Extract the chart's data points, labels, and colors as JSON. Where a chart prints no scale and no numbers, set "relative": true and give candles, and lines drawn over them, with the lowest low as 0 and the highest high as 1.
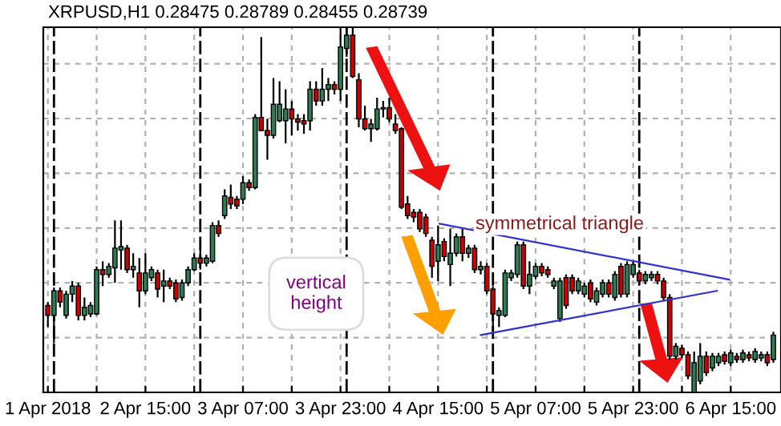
{
  "chart_data": {
    "type": "candlestick",
    "relative": true,
    "title": "XRPUSD,H1 0.28475 0.28789 0.28455 0.28739",
    "x": [
      "2018-04-01T23:00",
      "2018-04-02T00:00",
      "2018-04-02T01:00",
      "2018-04-02T02:00",
      "2018-04-02T03:00",
      "2018-04-02T04:00",
      "2018-04-02T05:00",
      "2018-04-02T06:00",
      "2018-04-02T07:00",
      "2018-04-02T08:00",
      "2018-04-02T09:00",
      "2018-04-02T10:00",
      "2018-04-02T11:00",
      "2018-04-02T12:00",
      "2018-04-02T13:00",
      "2018-04-02T14:00",
      "2018-04-02T15:00",
      "2018-04-02T16:00",
      "2018-04-02T17:00",
      "2018-04-02T18:00",
      "2018-04-02T19:00",
      "2018-04-02T20:00",
      "2018-04-02T21:00",
      "2018-04-02T22:00",
      "2018-04-02T23:00",
      "2018-04-03T00:00",
      "2018-04-03T01:00",
      "2018-04-03T02:00",
      "2018-04-03T03:00",
      "2018-04-03T04:00",
      "2018-04-03T05:00",
      "2018-04-03T06:00",
      "2018-04-03T07:00",
      "2018-04-03T08:00",
      "2018-04-03T09:00",
      "2018-04-03T10:00",
      "2018-04-03T11:00",
      "2018-04-03T12:00",
      "2018-04-03T13:00",
      "2018-04-03T14:00",
      "2018-04-03T15:00",
      "2018-04-03T16:00",
      "2018-04-03T17:00",
      "2018-04-03T18:00",
      "2018-04-03T19:00",
      "2018-04-03T20:00",
      "2018-04-03T21:00",
      "2018-04-03T22:00",
      "2018-04-03T23:00",
      "2018-04-04T00:00",
      "2018-04-04T01:00",
      "2018-04-04T02:00",
      "2018-04-04T03:00",
      "2018-04-04T04:00",
      "2018-04-04T05:00",
      "2018-04-04T06:00",
      "2018-04-04T07:00",
      "2018-04-04T08:00",
      "2018-04-04T09:00",
      "2018-04-04T10:00",
      "2018-04-04T11:00",
      "2018-04-04T12:00",
      "2018-04-04T13:00",
      "2018-04-04T14:00",
      "2018-04-04T15:00",
      "2018-04-04T16:00",
      "2018-04-04T17:00",
      "2018-04-04T18:00",
      "2018-04-04T19:00",
      "2018-04-04T20:00",
      "2018-04-04T21:00",
      "2018-04-04T22:00",
      "2018-04-04T23:00",
      "2018-04-05T00:00",
      "2018-04-05T01:00",
      "2018-04-05T02:00",
      "2018-04-05T03:00",
      "2018-04-05T04:00",
      "2018-04-05T05:00",
      "2018-04-05T06:00",
      "2018-04-05T07:00",
      "2018-04-05T08:00",
      "2018-04-05T09:00",
      "2018-04-05T10:00",
      "2018-04-05T11:00",
      "2018-04-05T12:00",
      "2018-04-05T13:00",
      "2018-04-05T14:00",
      "2018-04-05T15:00",
      "2018-04-05T16:00",
      "2018-04-05T17:00",
      "2018-04-05T18:00",
      "2018-04-05T19:00",
      "2018-04-05T20:00",
      "2018-04-05T21:00",
      "2018-04-05T22:00",
      "2018-04-05T23:00",
      "2018-04-06T00:00",
      "2018-04-06T01:00",
      "2018-04-06T02:00",
      "2018-04-06T03:00",
      "2018-04-06T04:00",
      "2018-04-06T05:00",
      "2018-04-06T06:00",
      "2018-04-06T07:00",
      "2018-04-06T08:00",
      "2018-04-06T09:00",
      "2018-04-06T10:00",
      "2018-04-06T11:00",
      "2018-04-06T12:00",
      "2018-04-06T13:00",
      "2018-04-06T14:00",
      "2018-04-06T15:00",
      "2018-04-06T16:00",
      "2018-04-06T17:00",
      "2018-04-06T18:00",
      "2018-04-06T19:00",
      "2018-04-06T20:00",
      "2018-04-06T21:00",
      "2018-04-06T22:00"
    ],
    "ohlc": [
      [
        0.238,
        0.247,
        0.179,
        0.211
      ],
      [
        0.211,
        0.287,
        0.135,
        0.278
      ],
      [
        0.278,
        0.287,
        0.233,
        0.247
      ],
      [
        0.211,
        0.278,
        0.202,
        0.269
      ],
      [
        0.269,
        0.305,
        0.247,
        0.291
      ],
      [
        0.291,
        0.3,
        0.197,
        0.211
      ],
      [
        0.211,
        0.26,
        0.197,
        0.233
      ],
      [
        0.215,
        0.247,
        0.206,
        0.238
      ],
      [
        0.215,
        0.345,
        0.211,
        0.336
      ],
      [
        0.336,
        0.359,
        0.291,
        0.323
      ],
      [
        0.323,
        0.354,
        0.314,
        0.345
      ],
      [
        0.341,
        0.471,
        0.3,
        0.395
      ],
      [
        0.39,
        0.471,
        0.336,
        0.399
      ],
      [
        0.395,
        0.404,
        0.327,
        0.336
      ],
      [
        0.336,
        0.381,
        0.314,
        0.345
      ],
      [
        0.327,
        0.368,
        0.233,
        0.278
      ],
      [
        0.278,
        0.381,
        0.269,
        0.327
      ],
      [
        0.314,
        0.345,
        0.305,
        0.336
      ],
      [
        0.327,
        0.336,
        0.26,
        0.283
      ],
      [
        0.291,
        0.336,
        0.247,
        0.305
      ],
      [
        0.305,
        0.314,
        0.283,
        0.291
      ],
      [
        0.3,
        0.309,
        0.247,
        0.256
      ],
      [
        0.26,
        0.309,
        0.251,
        0.3
      ],
      [
        0.3,
        0.345,
        0.291,
        0.336
      ],
      [
        0.336,
        0.381,
        0.332,
        0.368
      ],
      [
        0.368,
        0.395,
        0.336,
        0.354
      ],
      [
        0.354,
        0.377,
        0.345,
        0.368
      ],
      [
        0.359,
        0.466,
        0.354,
        0.457
      ],
      [
        0.457,
        0.471,
        0.426,
        0.435
      ],
      [
        0.484,
        0.556,
        0.475,
        0.538
      ],
      [
        0.534,
        0.569,
        0.502,
        0.516
      ],
      [
        0.529,
        0.538,
        0.502,
        0.511
      ],
      [
        0.529,
        0.592,
        0.516,
        0.574
      ],
      [
        0.574,
        0.583,
        0.552,
        0.561
      ],
      [
        0.561,
        0.762,
        0.556,
        0.753
      ],
      [
        0.753,
        0.973,
        0.717,
        0.717
      ],
      [
        0.717,
        0.749,
        0.637,
        0.704
      ],
      [
        0.704,
        0.861,
        0.695,
        0.789
      ],
      [
        0.744,
        0.852,
        0.74,
        0.789
      ],
      [
        0.744,
        0.83,
        0.682,
        0.776
      ],
      [
        0.776,
        0.798,
        0.704,
        0.749
      ],
      [
        0.749,
        0.762,
        0.717,
        0.74
      ],
      [
        0.744,
        0.762,
        0.708,
        0.735
      ],
      [
        0.744,
        0.852,
        0.717,
        0.83
      ],
      [
        0.83,
        0.852,
        0.785,
        0.798
      ],
      [
        0.798,
        0.888,
        0.785,
        0.83
      ],
      [
        0.83,
        0.861,
        0.798,
        0.843
      ],
      [
        0.843,
        0.852,
        0.816,
        0.83
      ],
      [
        0.83,
        1.0,
        0.798,
        0.946
      ],
      [
        0.942,
        1.0,
        0.919,
        0.978
      ],
      [
        0.978,
        1.0,
        0.861,
        0.865
      ],
      [
        0.856,
        0.874,
        0.726,
        0.749
      ],
      [
        0.749,
        0.785,
        0.717,
        0.722
      ],
      [
        0.722,
        0.749,
        0.686,
        0.735
      ],
      [
        0.722,
        0.807,
        0.717,
        0.776
      ],
      [
        0.776,
        0.798,
        0.753,
        0.78
      ],
      [
        0.78,
        0.807,
        0.74,
        0.749
      ],
      [
        0.735,
        0.762,
        0.708,
        0.717
      ],
      [
        0.722,
        0.726,
        0.502,
        0.507
      ],
      [
        0.516,
        0.538,
        0.475,
        0.484
      ],
      [
        0.493,
        0.502,
        0.466,
        0.48
      ],
      [
        0.493,
        0.502,
        0.439,
        0.448
      ],
      [
        0.48,
        0.489,
        0.426,
        0.435
      ],
      [
        0.417,
        0.426,
        0.314,
        0.345
      ],
      [
        0.359,
        0.457,
        0.305,
        0.404
      ],
      [
        0.413,
        0.422,
        0.359,
        0.372
      ],
      [
        0.35,
        0.448,
        0.291,
        0.381
      ],
      [
        0.381,
        0.435,
        0.372,
        0.426
      ],
      [
        0.426,
        0.448,
        0.359,
        0.381
      ],
      [
        0.381,
        0.404,
        0.368,
        0.395
      ],
      [
        0.395,
        0.404,
        0.327,
        0.336
      ],
      [
        0.336,
        0.359,
        0.323,
        0.345
      ],
      [
        0.345,
        0.354,
        0.269,
        0.278
      ],
      [
        0.283,
        0.291,
        0.17,
        0.215
      ],
      [
        0.211,
        0.233,
        0.179,
        0.224
      ],
      [
        0.211,
        0.336,
        0.206,
        0.327
      ],
      [
        0.314,
        0.336,
        0.305,
        0.327
      ],
      [
        0.323,
        0.413,
        0.314,
        0.404
      ],
      [
        0.404,
        0.413,
        0.283,
        0.291
      ],
      [
        0.291,
        0.359,
        0.269,
        0.323
      ],
      [
        0.318,
        0.354,
        0.309,
        0.345
      ],
      [
        0.345,
        0.354,
        0.318,
        0.327
      ],
      [
        0.336,
        0.345,
        0.314,
        0.323
      ],
      [
        0.291,
        0.314,
        0.283,
        0.305
      ],
      [
        0.202,
        0.314,
        0.193,
        0.305
      ],
      [
        0.314,
        0.323,
        0.229,
        0.238
      ],
      [
        0.314,
        0.323,
        0.269,
        0.278
      ],
      [
        0.278,
        0.314,
        0.269,
        0.305
      ],
      [
        0.269,
        0.3,
        0.26,
        0.291
      ],
      [
        0.3,
        0.309,
        0.247,
        0.256
      ],
      [
        0.247,
        0.287,
        0.238,
        0.278
      ],
      [
        0.269,
        0.309,
        0.26,
        0.3
      ],
      [
        0.3,
        0.309,
        0.26,
        0.269
      ],
      [
        0.26,
        0.332,
        0.251,
        0.323
      ],
      [
        0.345,
        0.354,
        0.26,
        0.269
      ],
      [
        0.269,
        0.359,
        0.26,
        0.35
      ],
      [
        0.323,
        0.359,
        0.314,
        0.35
      ],
      [
        0.327,
        0.336,
        0.296,
        0.305
      ],
      [
        0.305,
        0.332,
        0.296,
        0.323
      ],
      [
        0.314,
        0.332,
        0.305,
        0.323
      ],
      [
        0.323,
        0.332,
        0.296,
        0.305
      ],
      [
        0.305,
        0.314,
        0.251,
        0.26
      ],
      [
        0.26,
        0.269,
        0.09,
        0.099
      ],
      [
        0.099,
        0.135,
        0.09,
        0.126
      ],
      [
        0.121,
        0.13,
        0.094,
        0.103
      ],
      [
        0.103,
        0.112,
        0.036,
        0.045
      ],
      [
        0.0,
        0.112,
        0.0,
        0.081
      ],
      [
        0.031,
        0.135,
        0.022,
        0.099
      ],
      [
        0.099,
        0.112,
        0.045,
        0.054
      ],
      [
        0.067,
        0.108,
        0.058,
        0.099
      ],
      [
        0.081,
        0.108,
        0.072,
        0.099
      ],
      [
        0.103,
        0.112,
        0.076,
        0.085
      ],
      [
        0.081,
        0.117,
        0.072,
        0.108
      ],
      [
        0.099,
        0.108,
        0.081,
        0.09
      ],
      [
        0.09,
        0.117,
        0.081,
        0.108
      ],
      [
        0.103,
        0.112,
        0.085,
        0.094
      ],
      [
        0.09,
        0.121,
        0.081,
        0.112
      ],
      [
        0.094,
        0.112,
        0.085,
        0.103
      ],
      [
        0.103,
        0.112,
        0.072,
        0.081
      ],
      [
        0.09,
        0.166,
        0.081,
        0.157
      ]
    ],
    "series": [
      {
        "type": "line",
        "color": "#3333cc",
        "x": [
          "2018-04-04T15:15",
          "2018-04-06T14:45"
        ],
        "values": [
          0.462,
          0.309
        ]
      },
      {
        "type": "line",
        "color": "#3333cc",
        "x": [
          "2018-04-04T22:00",
          "2018-04-06T12:45"
        ],
        "values": [
          0.157,
          0.278
        ]
      }
    ],
    "xlim": [
      "2018-04-01T22:15",
      "2018-04-06T23:15"
    ],
    "xticks": [
      {
        "value": "2018-04-01T23:00",
        "label": "1 Apr 2018"
      },
      {
        "value": "2018-04-02T07:00",
        "label": null
      },
      {
        "value": "2018-04-02T15:00",
        "label": "2 Apr 15:00"
      },
      {
        "value": "2018-04-02T23:00",
        "label": null
      },
      {
        "value": "2018-04-03T07:00",
        "label": "3 Apr 07:00"
      },
      {
        "value": "2018-04-03T15:00",
        "label": null
      },
      {
        "value": "2018-04-03T23:00",
        "label": "3 Apr 23:00"
      },
      {
        "value": "2018-04-04T07:00",
        "label": null
      },
      {
        "value": "2018-04-04T15:00",
        "label": "4 Apr 15:00"
      },
      {
        "value": "2018-04-04T23:00",
        "label": null
      },
      {
        "value": "2018-04-05T07:00",
        "label": "5 Apr 07:00"
      },
      {
        "value": "2018-04-05T15:00",
        "label": null
      },
      {
        "value": "2018-04-05T23:00",
        "label": "5 Apr 23:00"
      },
      {
        "value": "2018-04-06T07:00",
        "label": null
      },
      {
        "value": "2018-04-06T15:00",
        "label": "6 Apr 15:00"
      }
    ],
    "ref_lines": [
      {
        "axis": "x",
        "value": "2018-04-02T00:00",
        "color": "#000000",
        "line_style": "dashed"
      },
      {
        "axis": "x",
        "value": "2018-04-03T00:00",
        "color": "#000000",
        "line_style": "dashed"
      },
      {
        "axis": "x",
        "value": "2018-04-04T00:00",
        "color": "#000000",
        "line_style": "dashed"
      },
      {
        "axis": "x",
        "value": "2018-04-05T00:00",
        "color": "#000000",
        "line_style": "dashed"
      },
      {
        "axis": "x",
        "value": "2018-04-06T00:00",
        "color": "#000000",
        "line_style": "dashed"
      }
    ],
    "annotations": [
      "symmetrical triangle",
      "vertical\nheight"
    ],
    "grid": true
  }
}
